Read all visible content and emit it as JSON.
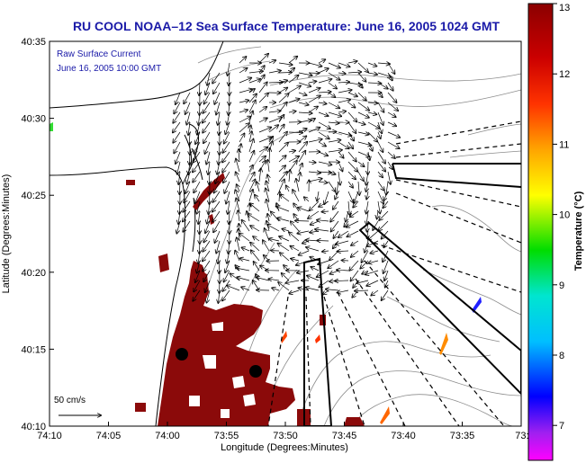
{
  "title": "RU COOL  NOAA–12  Sea Surface Temperature:  June 16, 2005 1024 GMT",
  "annotation": {
    "line1": "Raw Surface Current",
    "line2": "June 16, 2005 10:00 GMT"
  },
  "scale": {
    "label": "50 cm/s"
  },
  "axes": {
    "xlabel": "Longitude (Degrees:Minutes)",
    "ylabel": "Latitude (Degrees:Minutes)",
    "xticks": [
      "74:10",
      "74:05",
      "74:00",
      "73:55",
      "73:50",
      "73:45",
      "73:40",
      "73:35",
      "73:3"
    ],
    "yticks": [
      "40:35",
      "40:30",
      "40:25",
      "40:20",
      "40:15",
      "40:10"
    ]
  },
  "colorbar": {
    "label": "Temperature (°C)",
    "ticks": [
      "13",
      "12",
      "11",
      "10",
      "9",
      "8",
      "7"
    ],
    "colors": [
      "#ff00ff",
      "#8a2be2",
      "#0000ff",
      "#00bfff",
      "#00e5d0",
      "#00dd00",
      "#ffff00",
      "#ffa500",
      "#ff3300",
      "#cc0000",
      "#8b0000"
    ]
  },
  "colors": {
    "sst_high": "#8b0a0a",
    "coast": "#000000",
    "contour": "#808080",
    "title": "#1a1aa8"
  }
}
